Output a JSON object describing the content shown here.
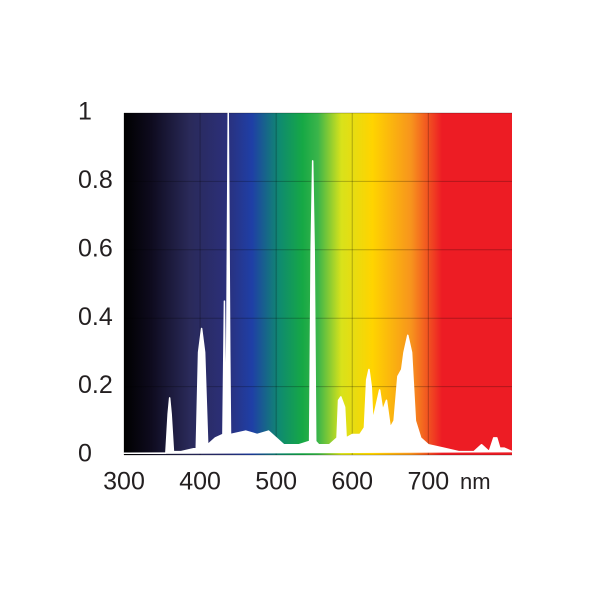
{
  "chart_data": {
    "type": "area",
    "x_unit": "nm",
    "x": [
      300,
      355,
      358,
      360,
      362,
      365,
      375,
      395,
      398,
      402,
      406,
      410,
      420,
      430,
      432,
      434,
      435,
      437,
      439,
      440,
      460,
      475,
      490,
      510,
      530,
      544,
      546,
      548,
      550,
      552,
      556,
      570,
      580,
      582,
      585,
      590,
      592,
      600,
      610,
      616,
      619,
      622,
      625,
      627,
      632,
      636,
      640,
      645,
      650,
      655,
      660,
      665,
      668,
      673,
      678,
      683,
      690,
      700,
      720,
      740,
      760,
      770,
      780,
      786,
      790,
      794,
      800,
      810
    ],
    "series": [
      {
        "color": "#ffffff",
        "values": [
          0.005,
          0.005,
          0.12,
          0.167,
          0.12,
          0.01,
          0.01,
          0.02,
          0.3,
          0.37,
          0.3,
          0.03,
          0.05,
          0.06,
          0.45,
          0.06,
          0.3,
          1.0,
          0.3,
          0.06,
          0.07,
          0.06,
          0.07,
          0.03,
          0.03,
          0.04,
          0.6,
          0.86,
          0.6,
          0.04,
          0.03,
          0.03,
          0.05,
          0.16,
          0.17,
          0.14,
          0.05,
          0.06,
          0.06,
          0.08,
          0.22,
          0.25,
          0.2,
          0.1,
          0.15,
          0.19,
          0.13,
          0.16,
          0.08,
          0.1,
          0.23,
          0.25,
          0.3,
          0.35,
          0.3,
          0.1,
          0.05,
          0.03,
          0.02,
          0.01,
          0.01,
          0.03,
          0.01,
          0.05,
          0.05,
          0.02,
          0.02,
          0.01
        ]
      }
    ],
    "xlim": [
      300,
      810
    ],
    "ylim": [
      0,
      1
    ],
    "xticks": [
      300,
      400,
      500,
      600,
      700
    ],
    "yticks": [
      0,
      0.2,
      0.4,
      0.6,
      0.8,
      1
    ],
    "grid": true
  }
}
